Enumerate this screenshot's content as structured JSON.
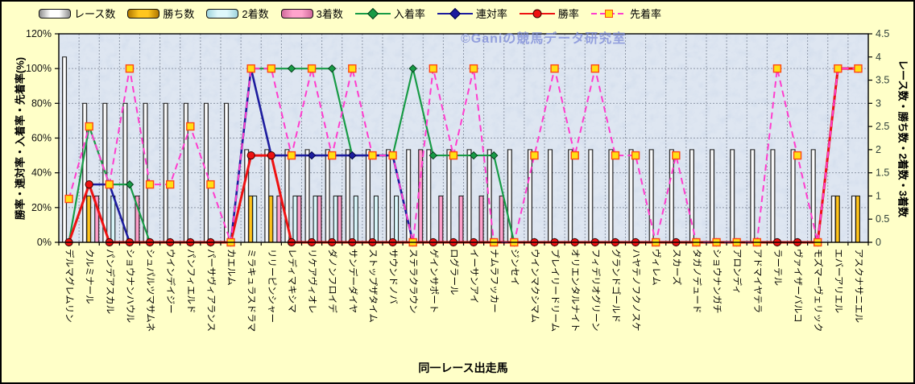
{
  "watermark": "©Ganiの競馬データ研究室",
  "axes": {
    "left_title": "勝率・連対率・入着率・先着率(%)",
    "right_title": "レース数・勝ち数・2着数・3着数",
    "x_title": "同一レース出走馬",
    "left_ticks": [
      "0%",
      "20%",
      "40%",
      "60%",
      "80%",
      "100%",
      "120%"
    ],
    "right_ticks": [
      "0",
      "0.5",
      "1",
      "1.5",
      "2",
      "2.5",
      "3",
      "3.5",
      "4",
      "4.5"
    ]
  },
  "colors": {
    "background": "#FFFFC8",
    "plot_fill": "#CDD9EA",
    "gridline": "#8F98A8",
    "race_bar": "#FFFFFF",
    "win_bar": "#FFC61E",
    "second_bar": "#DFF8FB",
    "third_bar": "#FFA3CC",
    "in_rate_line": "#189B46",
    "quinella_line": "#1C1C9E",
    "win_rate_line": "#EE1111",
    "ahead_line": "#FF3DCE",
    "square_marker": "#FFE014"
  },
  "chart_data": {
    "type": "combo bar+line, dual axis",
    "title": "",
    "xlabel": "同一レース出走馬",
    "ylabel_left": "勝率・連対率・入着率・先着率(%)",
    "ylabel_right": "レース数・勝ち数・2着数・3着数",
    "left_axis_range": [
      0,
      120
    ],
    "right_axis_range": [
      0,
      4.5
    ],
    "grid": true,
    "legend_position": "top",
    "categories": [
      "デルマグレムリン",
      "クルミナール",
      "パンデアスカル",
      "ショウナンハウル",
      "シュパルツマサムネ",
      "ウインデイジー",
      "パンフィエルド",
      "パーサヴィアランス",
      "カエルム",
      "ミラキュラスドラマ",
      "リリーピンシャー",
      "レディマキシマ",
      "リケアヴィオレ",
      "ダノンフロイデ",
      "サンデーダイヤ",
      "ストップザタイム",
      "サウンドノバ",
      "ステラクラウン",
      "ゲインサポート",
      "ログラール",
      "イーサンアイ",
      "ナムラフッカー",
      "ジンセイ",
      "ウインマクシマム",
      "プレイリードリーム",
      "オリエンタルナイト",
      "フィデリオグリーン",
      "グランドゴールド",
      "ハヤテノフクノスケ",
      "ヴィレム",
      "スカーズ",
      "タガノデュード",
      "ショウナンガチ",
      "アロンディ",
      "アドマイヤテラ",
      "ラーテル",
      "ヴァイザーバルコ",
      "モズマーヴェリック",
      "エバーアリエル",
      "アスクナサニエル"
    ],
    "series": [
      {
        "name": "レース数",
        "type": "bar",
        "axis": "right",
        "color_main": "#FFFFFF",
        "color_edge": "#8E8E8E",
        "values": [
          4,
          3,
          3,
          3,
          3,
          3,
          3,
          3,
          3,
          2,
          2,
          2,
          2,
          2,
          2,
          2,
          2,
          2,
          2,
          2,
          2,
          2,
          2,
          2,
          2,
          2,
          2,
          2,
          2,
          2,
          2,
          2,
          2,
          2,
          2,
          2,
          2,
          2,
          1,
          1
        ]
      },
      {
        "name": "勝ち数",
        "type": "bar",
        "axis": "right",
        "color_main": "#FFC61E",
        "color_edge": "#B07800",
        "values": [
          0,
          1,
          0,
          0,
          0,
          0,
          0,
          0,
          0,
          1,
          1,
          0,
          0,
          0,
          0,
          0,
          0,
          0,
          0,
          0,
          0,
          0,
          0,
          0,
          0,
          0,
          0,
          0,
          0,
          0,
          0,
          0,
          0,
          0,
          0,
          0,
          0,
          0,
          1,
          1
        ]
      },
      {
        "name": "2着数",
        "type": "bar",
        "axis": "right",
        "color_main": "#DFF8FB",
        "color_edge": "#9FD4DD",
        "values": [
          0,
          0,
          1,
          0,
          0,
          0,
          0,
          0,
          0,
          1,
          0,
          1,
          1,
          1,
          1,
          1,
          1,
          0,
          0,
          0,
          0,
          0,
          0,
          0,
          0,
          0,
          0,
          0,
          0,
          0,
          0,
          0,
          0,
          0,
          0,
          0,
          0,
          0,
          0,
          0
        ]
      },
      {
        "name": "3着数",
        "type": "bar",
        "axis": "right",
        "color_main": "#FFA3CC",
        "color_edge": "#D06A9B",
        "values": [
          0,
          1,
          0,
          1,
          0,
          0,
          0,
          0,
          0,
          0,
          1,
          1,
          1,
          1,
          0,
          0,
          0,
          2,
          1,
          1,
          1,
          1,
          0,
          0,
          0,
          0,
          0,
          0,
          0,
          0,
          0,
          0,
          0,
          0,
          0,
          0,
          0,
          0,
          0,
          0
        ]
      },
      {
        "name": "入着率",
        "type": "line",
        "axis": "left",
        "color": "#189B46",
        "width": 2.2,
        "dash": "",
        "marker": "diamond",
        "marker_fill": "#189B46",
        "marker_stroke": "#05401C",
        "values": [
          0,
          66.7,
          33.3,
          33.3,
          0,
          0,
          0,
          0,
          0,
          100,
          100,
          100,
          100,
          100,
          50,
          50,
          50,
          100,
          50,
          50,
          50,
          50,
          0,
          0,
          0,
          0,
          0,
          0,
          0,
          0,
          0,
          0,
          0,
          0,
          0,
          0,
          0,
          0,
          100,
          100
        ]
      },
      {
        "name": "連対率",
        "type": "line",
        "axis": "left",
        "color": "#1C1C9E",
        "width": 2.6,
        "dash": "",
        "marker": "diamond",
        "marker_fill": "#1C1C9E",
        "marker_stroke": "#00004A",
        "values": [
          0,
          33.3,
          33.3,
          0,
          0,
          0,
          0,
          0,
          0,
          100,
          50,
          50,
          50,
          50,
          50,
          50,
          50,
          0,
          0,
          0,
          0,
          0,
          0,
          0,
          0,
          0,
          0,
          0,
          0,
          0,
          0,
          0,
          0,
          0,
          0,
          0,
          0,
          0,
          100,
          100
        ]
      },
      {
        "name": "勝率",
        "type": "line",
        "axis": "left",
        "color": "#EE1111",
        "width": 3,
        "dash": "",
        "marker": "circle",
        "marker_fill": "#EE1111",
        "marker_stroke": "#3A0000",
        "values": [
          0,
          33.3,
          0,
          0,
          0,
          0,
          0,
          0,
          0,
          50,
          50,
          0,
          0,
          0,
          0,
          0,
          0,
          0,
          0,
          0,
          0,
          0,
          0,
          0,
          0,
          0,
          0,
          0,
          0,
          0,
          0,
          0,
          0,
          0,
          0,
          0,
          0,
          0,
          100,
          100
        ]
      },
      {
        "name": "先着率",
        "type": "line",
        "axis": "left",
        "color": "#FF3DCE",
        "width": 2,
        "dash": "8 5",
        "marker": "square",
        "marker_fill": "#FFE014",
        "marker_stroke": "#FF4713",
        "values": [
          25,
          66.7,
          33.3,
          100,
          33.3,
          33.3,
          66.7,
          33.3,
          0,
          100,
          100,
          50,
          100,
          50,
          100,
          50,
          50,
          0,
          100,
          50,
          100,
          0,
          0,
          50,
          100,
          50,
          100,
          50,
          50,
          0,
          50,
          0,
          0,
          0,
          0,
          100,
          50,
          0,
          100,
          100
        ]
      }
    ]
  }
}
